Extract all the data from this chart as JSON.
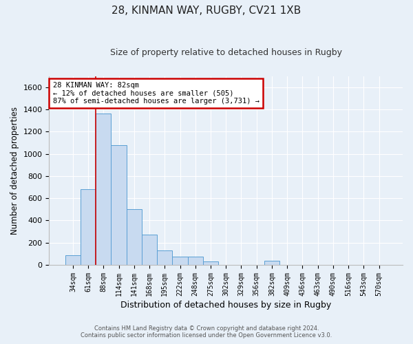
{
  "title_line1": "28, KINMAN WAY, RUGBY, CV21 1XB",
  "title_line2": "Size of property relative to detached houses in Rugby",
  "xlabel": "Distribution of detached houses by size in Rugby",
  "ylabel": "Number of detached properties",
  "categories": [
    "34sqm",
    "61sqm",
    "88sqm",
    "114sqm",
    "141sqm",
    "168sqm",
    "195sqm",
    "222sqm",
    "248sqm",
    "275sqm",
    "302sqm",
    "329sqm",
    "356sqm",
    "382sqm",
    "409sqm",
    "436sqm",
    "463sqm",
    "490sqm",
    "516sqm",
    "543sqm",
    "570sqm"
  ],
  "bar_heights": [
    90,
    680,
    1360,
    1080,
    500,
    270,
    130,
    75,
    75,
    30,
    0,
    0,
    0,
    35,
    0,
    0,
    0,
    0,
    0,
    0,
    0
  ],
  "bar_color": "#c8daf0",
  "bar_edge_color": "#5a9fd4",
  "vline_x_idx": 2,
  "annotation_text_line1": "28 KINMAN WAY: 82sqm",
  "annotation_text_line2": "← 12% of detached houses are smaller (505)",
  "annotation_text_line3": "87% of semi-detached houses are larger (3,731) →",
  "annotation_box_color": "#ffffff",
  "annotation_box_edge": "#cc0000",
  "vline_color": "#cc0000",
  "ylim": [
    0,
    1700
  ],
  "yticks": [
    0,
    200,
    400,
    600,
    800,
    1000,
    1200,
    1400,
    1600
  ],
  "footer_line1": "Contains HM Land Registry data © Crown copyright and database right 2024.",
  "footer_line2": "Contains public sector information licensed under the Open Government Licence v3.0.",
  "background_color": "#e8f0f8",
  "plot_bg_color": "#e8f0f8"
}
